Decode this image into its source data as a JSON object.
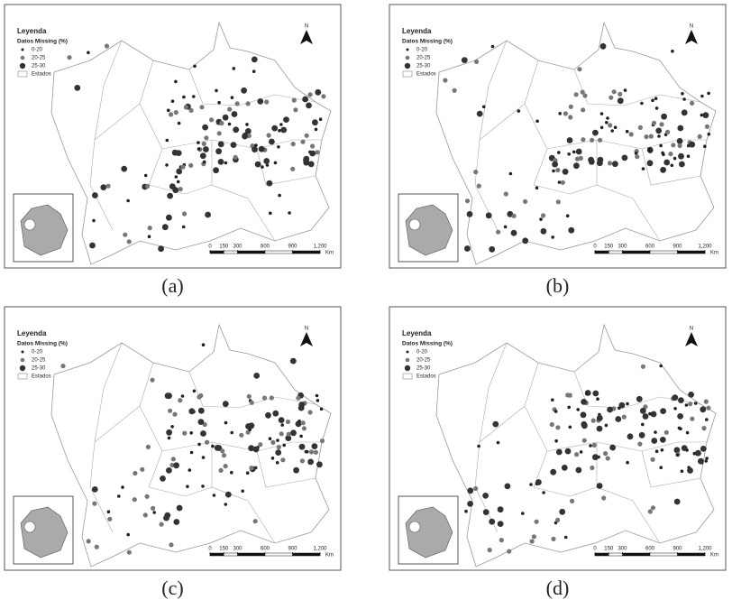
{
  "panels": [
    {
      "caption": "(a)",
      "legend": {
        "title": "Leyenda",
        "subtitle": "Datos Missing (%)",
        "items": [
          "0-20",
          "20-25",
          "25-30"
        ],
        "boundary": "Estados"
      },
      "north": "N",
      "scale": {
        "ticks": [
          0,
          150,
          300,
          600,
          900,
          {
            "value": 1200,
            "label": "1,200"
          }
        ],
        "unit": "Km"
      }
    },
    {
      "caption": "(b)",
      "legend": {
        "title": "Leyenda",
        "subtitle": "Datos Missing (%)",
        "items": [
          "0-20",
          "20-25",
          "25-30"
        ],
        "boundary": "Estados"
      },
      "north": "N",
      "scale": {
        "ticks": [
          0,
          150,
          300,
          600,
          900,
          {
            "value": 1200,
            "label": "1,200"
          }
        ],
        "unit": "Km"
      }
    },
    {
      "caption": "(c)",
      "legend": {
        "title": "Leyenda",
        "subtitle": "Datos Missing (%)",
        "items": [
          "0-20",
          "20-25",
          "25-30"
        ],
        "boundary": "Estados"
      },
      "north": "N",
      "scale": {
        "ticks": [
          0,
          150,
          300,
          600,
          900,
          {
            "value": 1200,
            "label": "1,200"
          }
        ],
        "unit": "Km"
      }
    },
    {
      "caption": "(d)",
      "legend": {
        "title": "Leyenda",
        "subtitle": "Datos Missing (%)",
        "items": [
          "0-20",
          "20-25",
          "25-30"
        ],
        "boundary": "Estados"
      },
      "north": "N",
      "scale": {
        "ticks": [
          0,
          150,
          300,
          600,
          900,
          {
            "value": 1200,
            "label": "1,200"
          }
        ],
        "unit": "Km"
      }
    }
  ]
}
